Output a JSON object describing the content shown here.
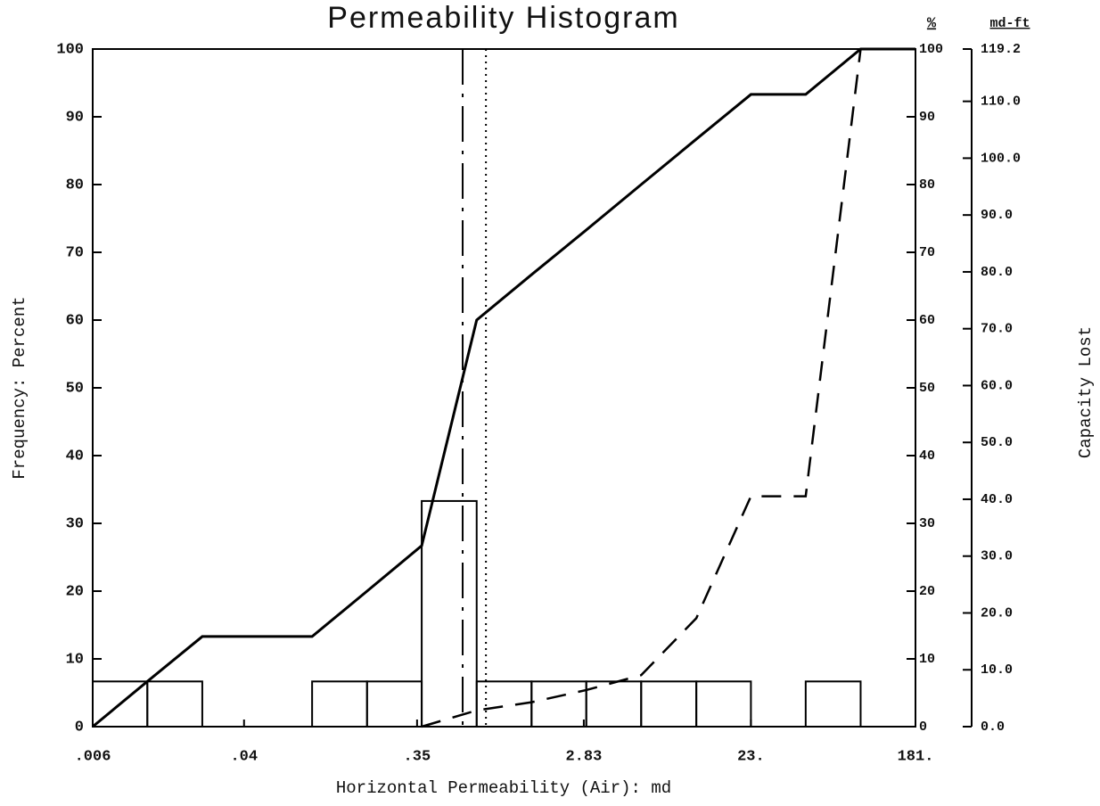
{
  "chart_data": {
    "type": "histogram",
    "title": "Permeability Histogram",
    "xlabel": "Horizontal Permeability (Air): md",
    "ylabel": "Frequency: Percent",
    "y2label": "Capacity Lost",
    "y2header": "%",
    "y3header": "md-ft",
    "xscale": "log",
    "xlim": [
      0.006,
      181
    ],
    "xticks": [
      {
        "value": 0.006,
        "label": ".006"
      },
      {
        "value": 0.04,
        "label": ".04"
      },
      {
        "value": 0.35,
        "label": ".35"
      },
      {
        "value": 2.83,
        "label": "2.83"
      },
      {
        "value": 23,
        "label": "23."
      },
      {
        "value": 181,
        "label": "181."
      }
    ],
    "ylim": [
      0,
      100
    ],
    "yticks": [
      0,
      10,
      20,
      30,
      40,
      50,
      60,
      70,
      80,
      90,
      100
    ],
    "y2lim": [
      0,
      100
    ],
    "y2ticks": [
      0,
      10,
      20,
      30,
      40,
      50,
      60,
      70,
      80,
      90,
      100
    ],
    "y3lim": [
      0,
      119.2
    ],
    "y3ticks": [
      {
        "value": 0,
        "label": "0.0"
      },
      {
        "value": 10,
        "label": "10.0"
      },
      {
        "value": 20,
        "label": "20.0"
      },
      {
        "value": 30,
        "label": "30.0"
      },
      {
        "value": 40,
        "label": "40.0"
      },
      {
        "value": 50,
        "label": "50.0"
      },
      {
        "value": 60,
        "label": "60.0"
      },
      {
        "value": 70,
        "label": "70.0"
      },
      {
        "value": 80,
        "label": "80.0"
      },
      {
        "value": 90,
        "label": "90.0"
      },
      {
        "value": 100,
        "label": "100.0"
      },
      {
        "value": 110,
        "label": "110.0"
      },
      {
        "value": 119.2,
        "label": "119.2"
      }
    ],
    "bins": [
      0.006,
      0.0119,
      0.0237,
      0.0472,
      0.0939,
      0.187,
      0.371,
      0.739,
      1.47,
      2.92,
      5.81,
      11.6,
      23.0,
      45.7,
      91.0,
      181
    ],
    "counts": [
      6.67,
      6.67,
      0,
      0,
      6.67,
      6.67,
      33.3,
      6.67,
      6.67,
      6.67,
      6.67,
      6.67,
      0,
      6.67,
      0
    ],
    "color": "#000000",
    "lines": [
      {
        "style": "solid",
        "axis": "y",
        "values": [
          0,
          6.67,
          13.3,
          13.3,
          13.3,
          20,
          26.7,
          60,
          66.7,
          73.3,
          80,
          86.7,
          93.3,
          93.3,
          100,
          100
        ]
      },
      {
        "style": "dashed",
        "axis": "y2",
        "values": [
          null,
          null,
          null,
          null,
          null,
          null,
          0,
          2.4,
          3.6,
          5.4,
          7.6,
          16,
          34,
          34,
          100,
          null
        ]
      }
    ],
    "vlines": [
      {
        "value": 0.62,
        "style": "dashdot"
      },
      {
        "value": 0.83,
        "style": "dotted"
      }
    ]
  }
}
